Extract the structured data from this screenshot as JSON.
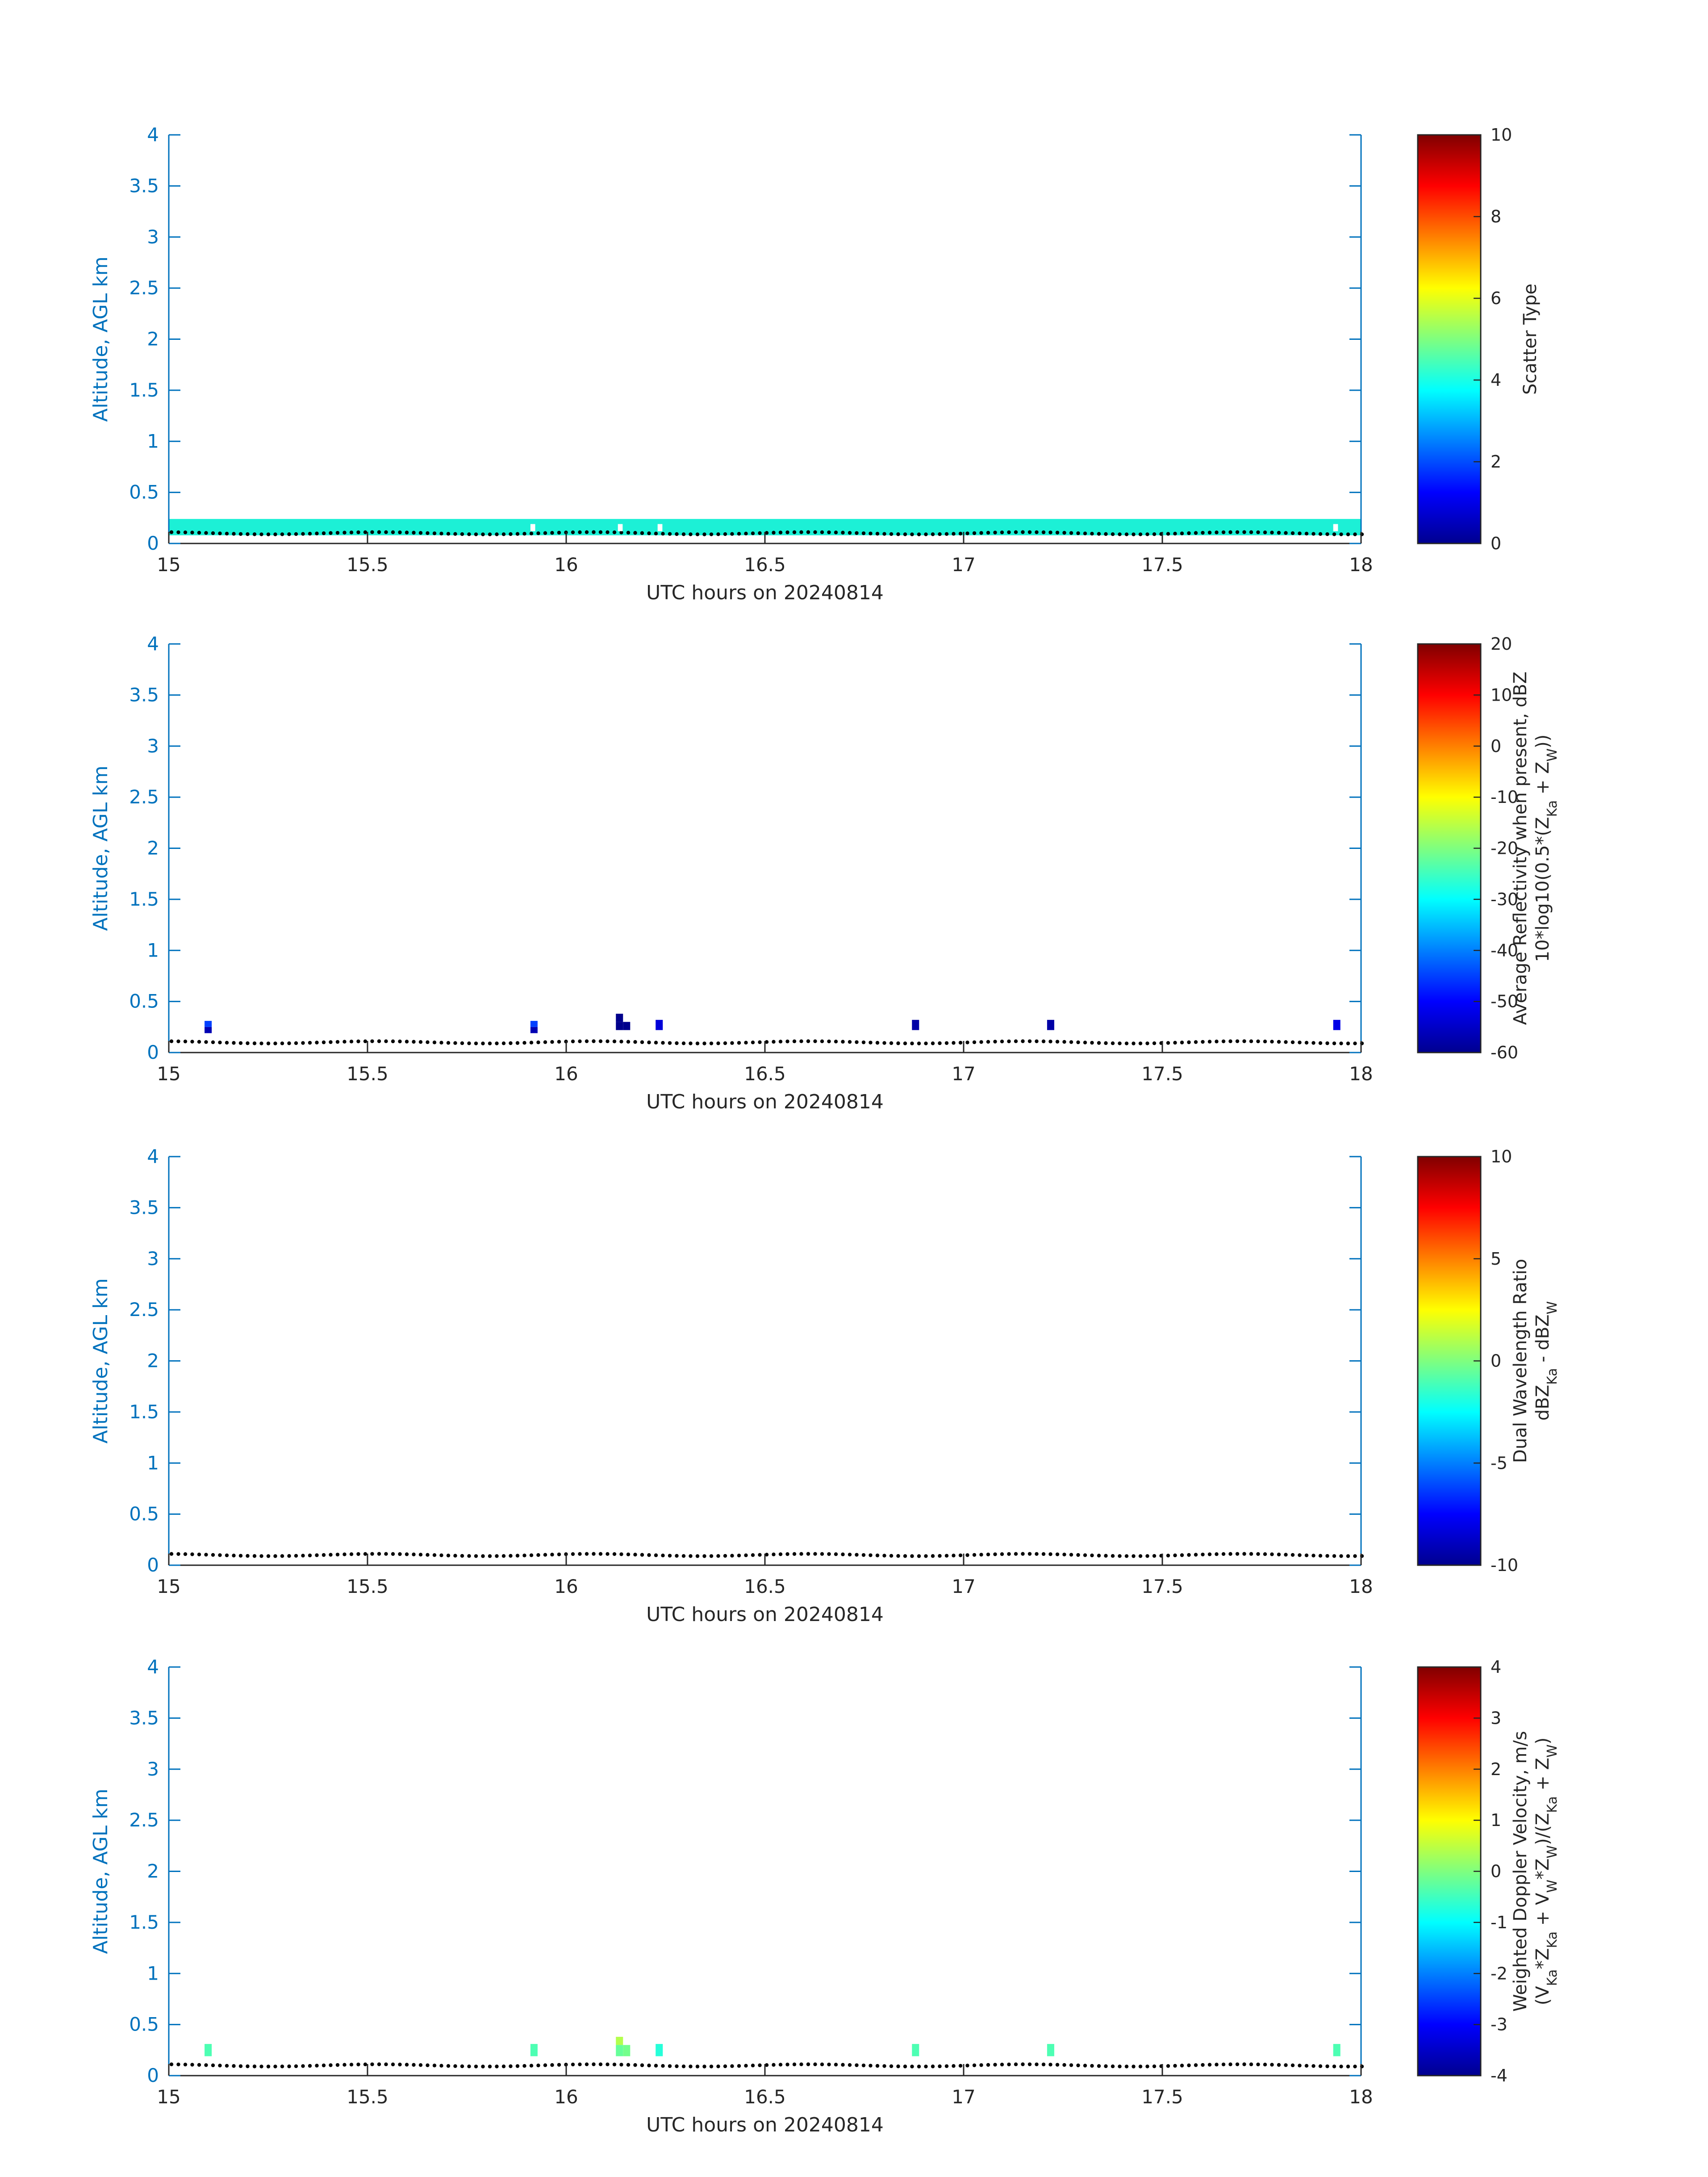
{
  "colors": {
    "axis": "#0072BD",
    "text": "#262626",
    "ground_dots": "#000000",
    "band_cyan": "#1CF0D6",
    "marker_white": "#FFFFFF"
  },
  "chart_data": [
    {
      "type": "heatmap",
      "xlabel": "UTC hours on 20240814",
      "ylabel": "Altitude, AGL km",
      "xlim": [
        15,
        18
      ],
      "ylim": [
        0,
        4
      ],
      "xticks": [
        "15",
        "15.5",
        "16",
        "16.5",
        "17",
        "17.5",
        "18"
      ],
      "yticks": [
        "0",
        "0.5",
        "1",
        "1.5",
        "2",
        "2.5",
        "3",
        "3.5",
        "4"
      ],
      "colorbar": {
        "label_lines": [
          "Scatter Type"
        ],
        "range": [
          0,
          10
        ],
        "ticks": [
          "0",
          "2",
          "4",
          "6",
          "8",
          "10"
        ]
      },
      "ground_altitude_km": 0.1,
      "band": {
        "x": [
          15,
          18
        ],
        "y": [
          0.08,
          0.24
        ],
        "value": 3.8
      },
      "cells": [
        {
          "x": 15.91,
          "y": 0.12,
          "w": 0.012,
          "h": 0.07,
          "color": "#FFFFFF"
        },
        {
          "x": 16.13,
          "y": 0.12,
          "w": 0.012,
          "h": 0.07,
          "color": "#FFFFFF"
        },
        {
          "x": 16.23,
          "y": 0.12,
          "w": 0.012,
          "h": 0.07,
          "color": "#FFFFFF"
        },
        {
          "x": 17.93,
          "y": 0.12,
          "w": 0.012,
          "h": 0.07,
          "color": "#FFFFFF"
        }
      ]
    },
    {
      "type": "heatmap",
      "xlabel": "UTC hours on 20240814",
      "ylabel": "Altitude, AGL km",
      "xlim": [
        15,
        18
      ],
      "ylim": [
        0,
        4
      ],
      "xticks": [
        "15",
        "15.5",
        "16",
        "16.5",
        "17",
        "17.5",
        "18"
      ],
      "yticks": [
        "0",
        "0.5",
        "1",
        "1.5",
        "2",
        "2.5",
        "3",
        "3.5",
        "4"
      ],
      "colorbar": {
        "label_lines": [
          "Average Reflectivity when present, dBZ",
          "10*log10(0.5*(Z_{Ka} + Z_{W}))"
        ],
        "range": [
          -60,
          20
        ],
        "ticks": [
          "-60",
          "-50",
          "-40",
          "-30",
          "-20",
          "-10",
          "0",
          "10",
          "20"
        ]
      },
      "ground_altitude_km": 0.1,
      "cells": [
        {
          "x": 15.09,
          "y": 0.25,
          "w": 0.018,
          "h": 0.06,
          "value": -45
        },
        {
          "x": 15.09,
          "y": 0.19,
          "w": 0.018,
          "h": 0.06,
          "value": -56
        },
        {
          "x": 15.91,
          "y": 0.25,
          "w": 0.018,
          "h": 0.06,
          "value": -45
        },
        {
          "x": 15.91,
          "y": 0.19,
          "w": 0.018,
          "h": 0.06,
          "value": -56
        },
        {
          "x": 16.125,
          "y": 0.3,
          "w": 0.018,
          "h": 0.08,
          "value": -59
        },
        {
          "x": 16.125,
          "y": 0.22,
          "w": 0.018,
          "h": 0.08,
          "value": -59
        },
        {
          "x": 16.143,
          "y": 0.22,
          "w": 0.018,
          "h": 0.08,
          "value": -59
        },
        {
          "x": 16.225,
          "y": 0.22,
          "w": 0.018,
          "h": 0.1,
          "value": -53
        },
        {
          "x": 16.87,
          "y": 0.22,
          "w": 0.018,
          "h": 0.1,
          "value": -57
        },
        {
          "x": 17.21,
          "y": 0.22,
          "w": 0.018,
          "h": 0.1,
          "value": -57
        },
        {
          "x": 17.93,
          "y": 0.22,
          "w": 0.018,
          "h": 0.1,
          "value": -52
        }
      ]
    },
    {
      "type": "heatmap",
      "xlabel": "UTC hours on 20240814",
      "ylabel": "Altitude, AGL km",
      "xlim": [
        15,
        18
      ],
      "ylim": [
        0,
        4
      ],
      "xticks": [
        "15",
        "15.5",
        "16",
        "16.5",
        "17",
        "17.5",
        "18"
      ],
      "yticks": [
        "0",
        "0.5",
        "1",
        "1.5",
        "2",
        "2.5",
        "3",
        "3.5",
        "4"
      ],
      "colorbar": {
        "label_lines": [
          "Dual Wavelength Ratio",
          "dBZ_{Ka} - dBZ_{W}"
        ],
        "range": [
          -10,
          10
        ],
        "ticks": [
          "-10",
          "-5",
          "0",
          "5",
          "10"
        ]
      },
      "ground_altitude_km": 0.1,
      "cells": []
    },
    {
      "type": "heatmap",
      "xlabel": "UTC hours on 20240814",
      "ylabel": "Altitude, AGL km",
      "xlim": [
        15,
        18
      ],
      "ylim": [
        0,
        4
      ],
      "xticks": [
        "15",
        "15.5",
        "16",
        "16.5",
        "17",
        "17.5",
        "18"
      ],
      "yticks": [
        "0",
        "0.5",
        "1",
        "1.5",
        "2",
        "2.5",
        "3",
        "3.5",
        "4"
      ],
      "colorbar": {
        "label_lines": [
          "Weighted Doppler Velocity, m/s",
          "(V_{Ka}*Z_{Ka} + V_{W}*Z_{W})/(Z_{Ka} + Z_{W})"
        ],
        "range": [
          -4,
          4
        ],
        "ticks": [
          "-4",
          "-3",
          "-2",
          "-1",
          "0",
          "1",
          "2",
          "3",
          "4"
        ]
      },
      "ground_altitude_km": 0.1,
      "cells": [
        {
          "x": 15.09,
          "y": 0.19,
          "w": 0.018,
          "h": 0.12,
          "value": -0.4
        },
        {
          "x": 15.91,
          "y": 0.19,
          "w": 0.018,
          "h": 0.12,
          "value": -0.4
        },
        {
          "x": 16.125,
          "y": 0.3,
          "w": 0.018,
          "h": 0.08,
          "value": 0.4
        },
        {
          "x": 16.125,
          "y": 0.19,
          "w": 0.018,
          "h": 0.11,
          "value": -0.2
        },
        {
          "x": 16.143,
          "y": 0.19,
          "w": 0.018,
          "h": 0.11,
          "value": -0.1
        },
        {
          "x": 16.225,
          "y": 0.19,
          "w": 0.018,
          "h": 0.12,
          "value": -0.7
        },
        {
          "x": 16.87,
          "y": 0.19,
          "w": 0.018,
          "h": 0.12,
          "value": -0.4
        },
        {
          "x": 17.21,
          "y": 0.19,
          "w": 0.018,
          "h": 0.12,
          "value": -0.4
        },
        {
          "x": 17.93,
          "y": 0.19,
          "w": 0.018,
          "h": 0.12,
          "value": -0.4
        }
      ]
    }
  ]
}
